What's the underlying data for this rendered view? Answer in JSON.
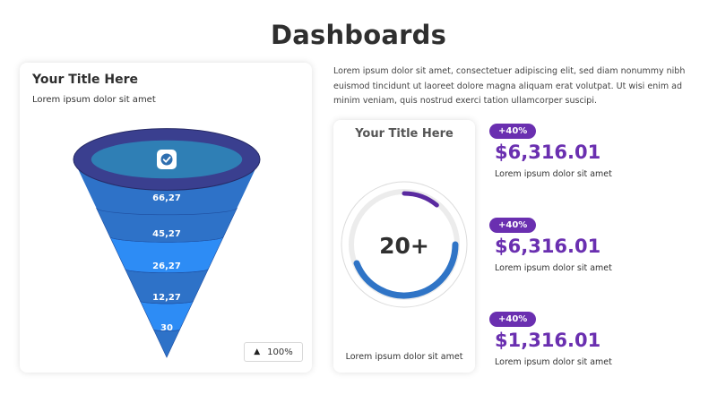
{
  "page": {
    "title": "Dashboards"
  },
  "funnel_card": {
    "title": "Your Title Here",
    "subtitle": "Lorem ipsum dolor sit amet",
    "zoom_label": "100%"
  },
  "intro_text": "Lorem ipsum dolor sit amet, consectetuer adipiscing elit, sed diam nonummy nibh euismod tincidunt ut laoreet dolore magna aliquam erat volutpat. Ut wisi enim ad minim veniam, quis nostrud exerci tation ullamcorper suscipi.",
  "gauge_card": {
    "title": "Your Title Here",
    "value_label": "20+",
    "caption": "Lorem ipsum dolor sit amet"
  },
  "stats": [
    {
      "badge": "+40%",
      "value": "$6,316.01",
      "desc": "Lorem ipsum dolor sit amet"
    },
    {
      "badge": "+40%",
      "value": "$6,316.01",
      "desc": "Lorem ipsum dolor sit amet"
    },
    {
      "badge": "+40%",
      "value": "$1,316.01",
      "desc": "Lorem ipsum dolor sit amet"
    }
  ],
  "colors": {
    "rim": "#3a3f8f",
    "top_fill": "#2f7fb5",
    "funnel_a": "#2e72c8",
    "funnel_b": "#2d8cf5",
    "ring_blue": "#2f74c6",
    "ring_purple": "#5a2aa0",
    "ring_track": "#ececec",
    "accent": "#6a2fb0"
  },
  "chart_data": [
    {
      "type": "funnel",
      "title": "Your Title Here",
      "categories": [
        "66,27",
        "45,27",
        "26,27",
        "12,27",
        "30"
      ],
      "values": [
        66.27,
        45.27,
        26.27,
        12.27,
        30
      ],
      "icon": "check-icon"
    },
    {
      "type": "donut-gauge",
      "title": "Your Title Here",
      "center_label": "20+",
      "segments": [
        {
          "name": "blue",
          "percent": 0.44
        },
        {
          "name": "purple",
          "percent": 0.11
        }
      ]
    }
  ]
}
